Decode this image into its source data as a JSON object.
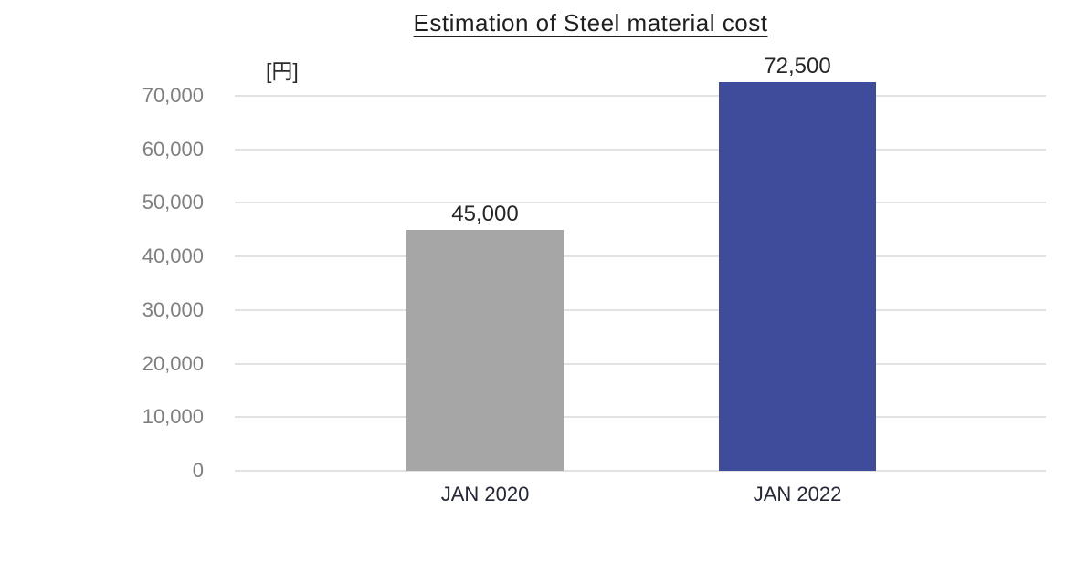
{
  "chart_data": {
    "type": "bar",
    "title": "Estimation of Steel material cost",
    "ylabel": "[円]",
    "xlabel": "",
    "categories": [
      "JAN 2020",
      "JAN 2022"
    ],
    "values": [
      45000,
      72500
    ],
    "value_labels": [
      "45,000",
      "72,500"
    ],
    "bar_colors": [
      "#a6a6a6",
      "#3e4c9b"
    ],
    "ylim": [
      0,
      70000
    ],
    "ytick_step": 10000,
    "ytick_labels": [
      "0",
      "10,000",
      "20,000",
      "30,000",
      "40,000",
      "50,000",
      "60,000",
      "70,000"
    ],
    "grid": "horizontal",
    "legend_position": "none"
  },
  "colors": {
    "background": "#ffffff",
    "title_text": "#1f1f1f",
    "value_label_text": "#262626",
    "category_label_text": "#242736",
    "tick_label_text": "#7f7f7f",
    "gridline": "#e2e2e2",
    "bar_jan_2020": "#a6a6a6",
    "bar_jan_2022": "#3e4c9b"
  }
}
